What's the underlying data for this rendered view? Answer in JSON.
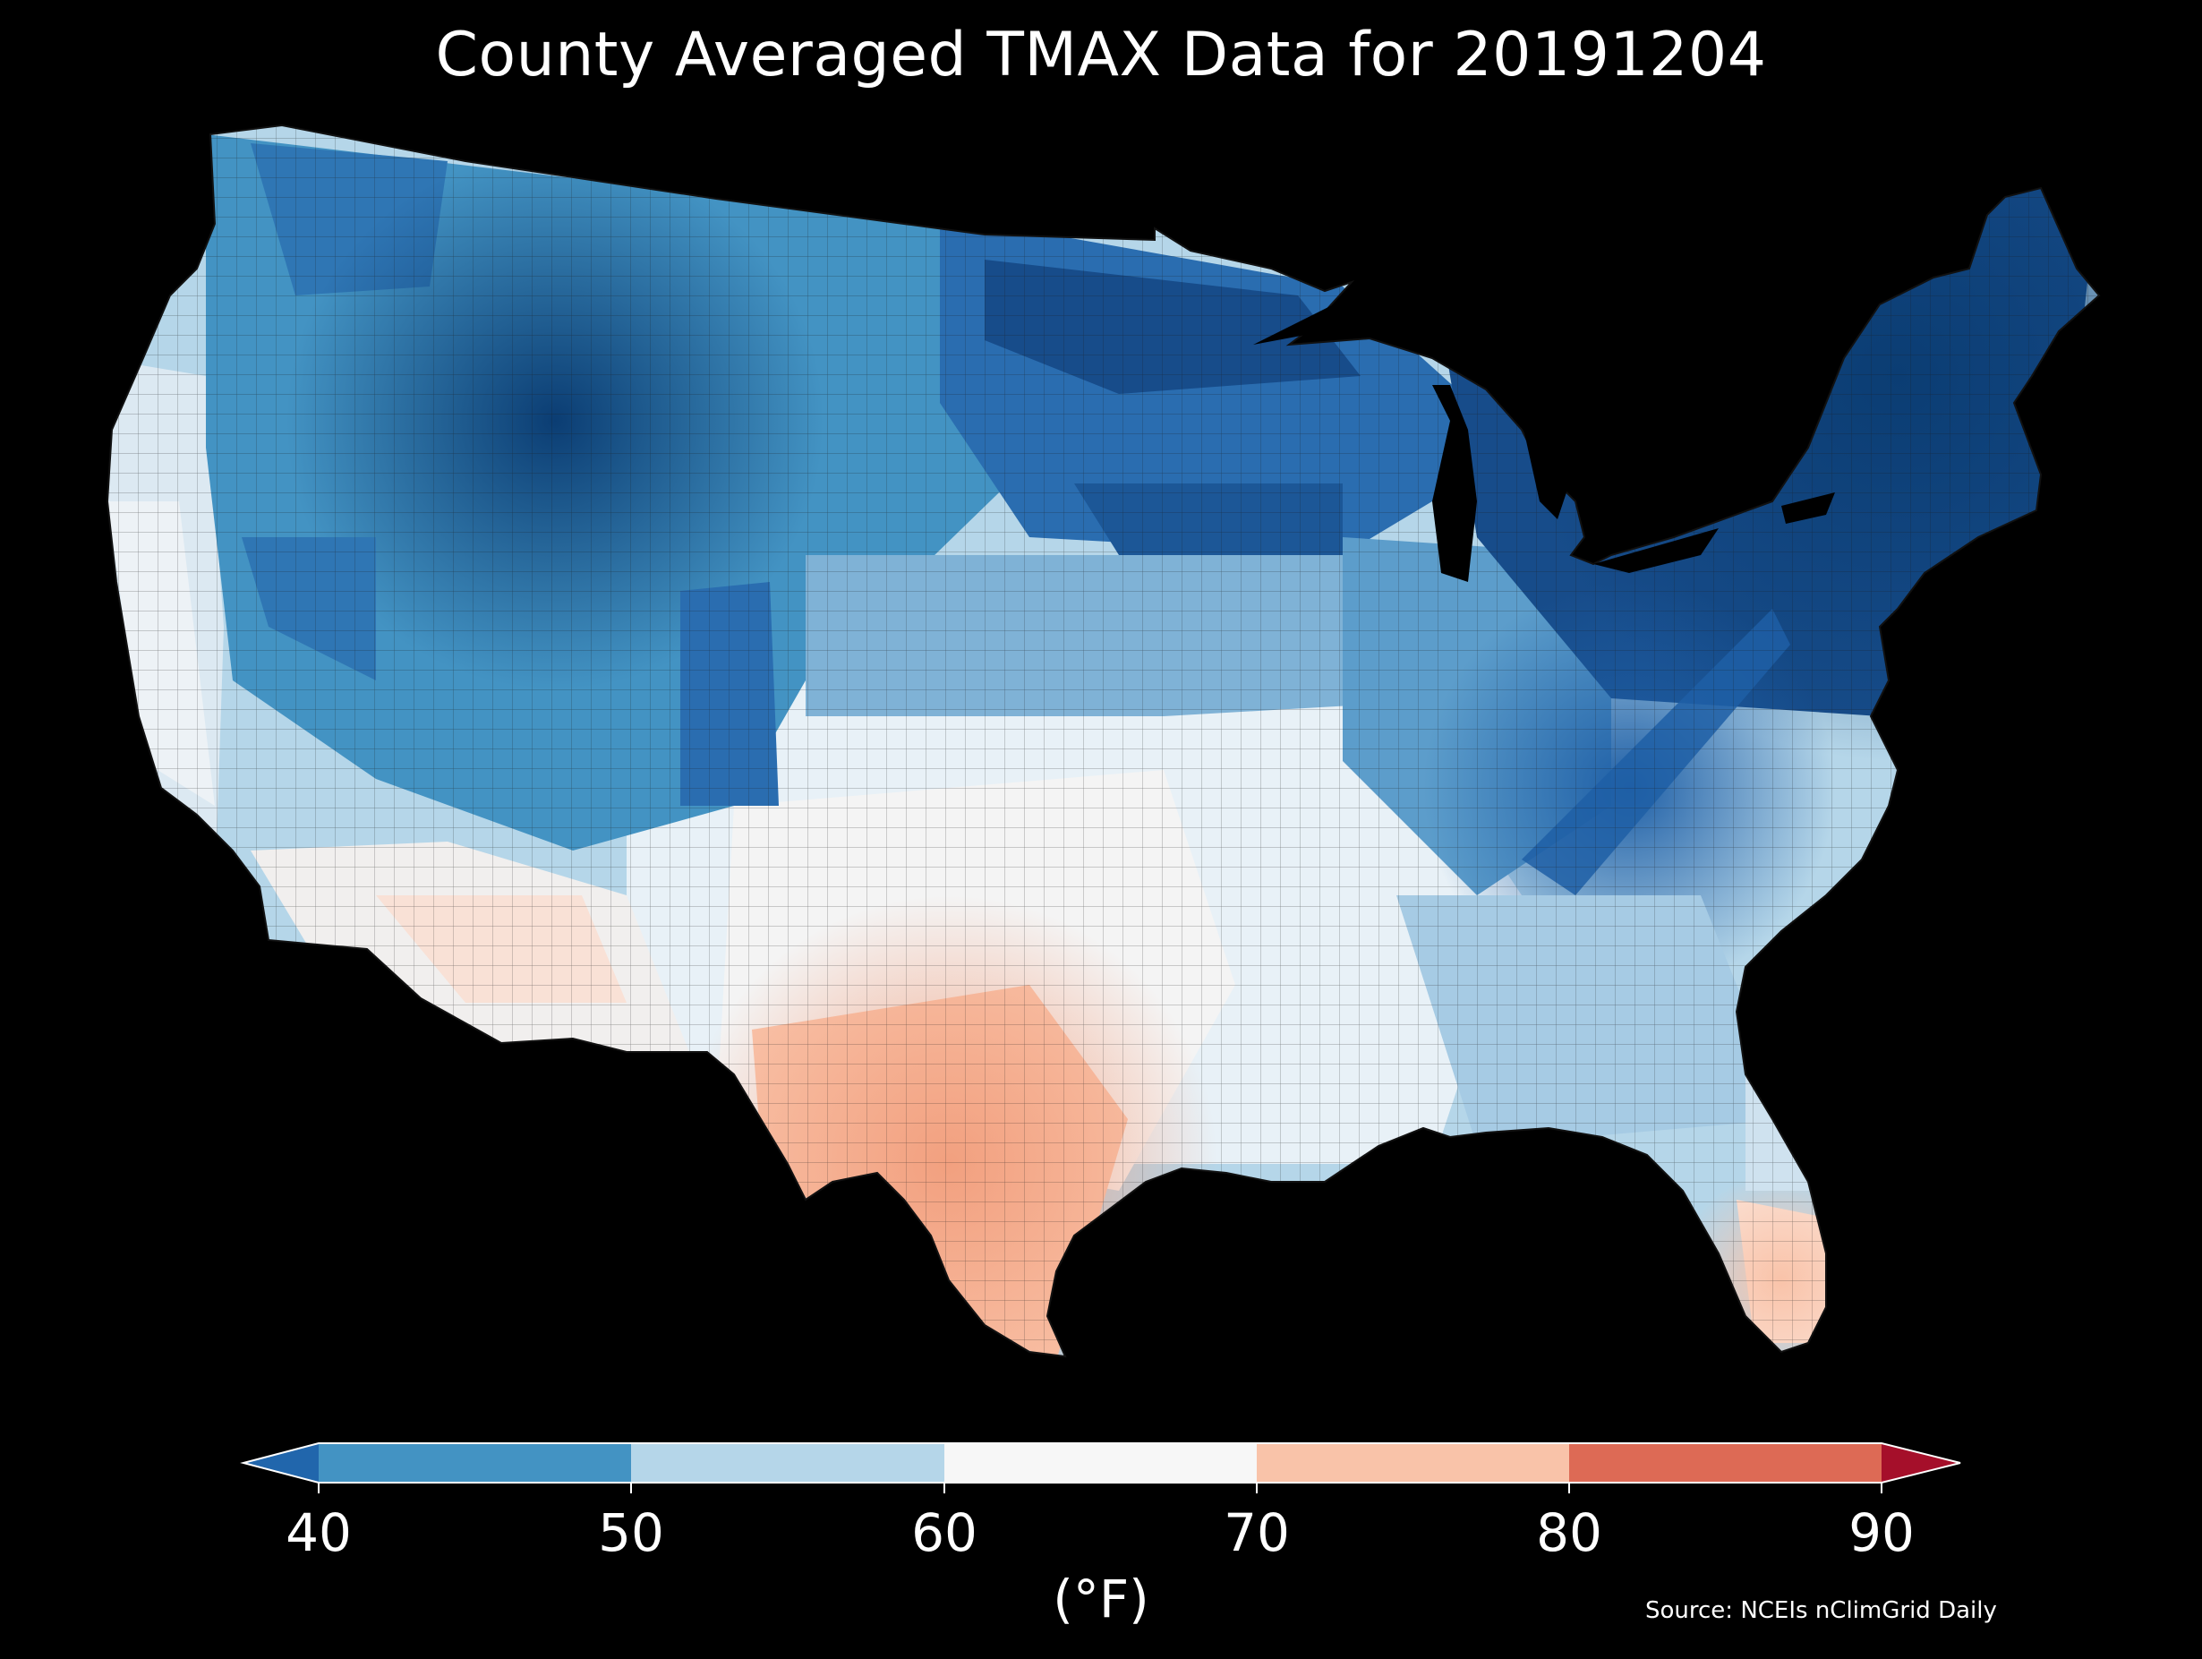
{
  "title": "County Averaged TMAX Data for 20191204",
  "source": "Source: NCEIs nClimGrid Daily",
  "colorbar": {
    "units": "(°F)",
    "ticks": [
      "40",
      "50",
      "60",
      "70",
      "80",
      "90"
    ],
    "bins": [
      {
        "range": [
          40,
          50
        ],
        "color": "#4393c3"
      },
      {
        "range": [
          50,
          60
        ],
        "color": "#b5d6e9"
      },
      {
        "range": [
          60,
          70
        ],
        "color": "#f7f7f7"
      },
      {
        "range": [
          70,
          80
        ],
        "color": "#f9c3a9"
      },
      {
        "range": [
          80,
          90
        ],
        "color": "#dd6a55"
      }
    ],
    "under_color": "#2166ac",
    "over_color": "#a50f2a",
    "extend": "both"
  },
  "map_colors": {
    "background": "#000000",
    "coldest": "#0b3d73",
    "cold": "#1f5fa6",
    "cool": "#4393c3",
    "mild_cool": "#b5d6e9",
    "mild": "#f0f4f7",
    "warm": "#f9c3a9",
    "warmest": "#f2a07f",
    "county_border": "#1a1a1a"
  }
}
